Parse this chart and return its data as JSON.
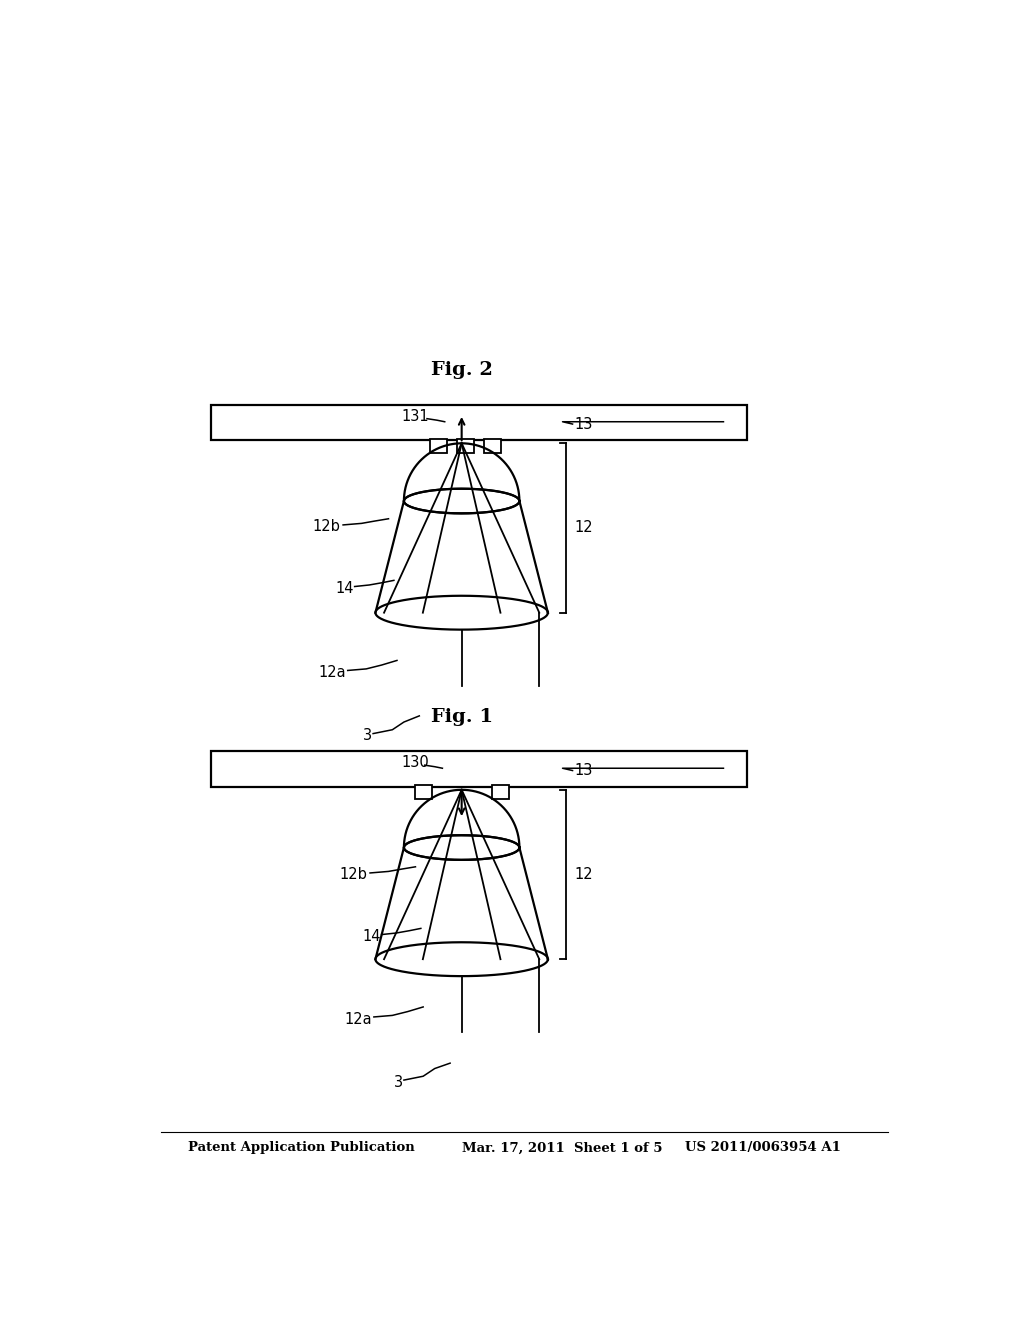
{
  "bg_color": "#ffffff",
  "line_color": "#000000",
  "header_left": "Patent Application Publication",
  "header_mid": "Mar. 17, 2011  Sheet 1 of 5",
  "header_right": "US 2011/0063954 A1",
  "fig1_title": "Fig. 1",
  "fig2_title": "Fig. 2"
}
